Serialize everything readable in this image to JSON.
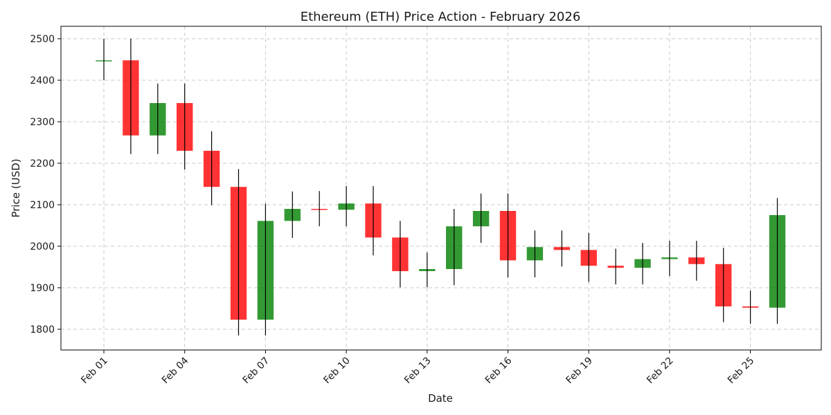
{
  "chart_data": {
    "type": "candlestick",
    "title": "Ethereum (ETH) Price Action - February 2026",
    "xlabel": "Date",
    "ylabel": "Price (USD)",
    "ylim": [
      1750,
      2530
    ],
    "yticks": [
      1800,
      1900,
      2000,
      2100,
      2200,
      2300,
      2400,
      2500
    ],
    "xticks": [
      {
        "index": 0,
        "label": "Feb 01"
      },
      {
        "index": 3,
        "label": "Feb 04"
      },
      {
        "index": 6,
        "label": "Feb 07"
      },
      {
        "index": 9,
        "label": "Feb 10"
      },
      {
        "index": 12,
        "label": "Feb 13"
      },
      {
        "index": 15,
        "label": "Feb 16"
      },
      {
        "index": 18,
        "label": "Feb 19"
      },
      {
        "index": 21,
        "label": "Feb 22"
      },
      {
        "index": 24,
        "label": "Feb 25"
      }
    ],
    "grid": true,
    "colors": {
      "up": "#008000",
      "down": "#ff0000"
    },
    "candles": [
      {
        "date": "Feb 01",
        "open": 2448,
        "high": 2500,
        "low": 2400,
        "close": 2448
      },
      {
        "date": "Feb 02",
        "open": 2448,
        "high": 2500,
        "low": 2222,
        "close": 2267
      },
      {
        "date": "Feb 03",
        "open": 2267,
        "high": 2392,
        "low": 2222,
        "close": 2345
      },
      {
        "date": "Feb 04",
        "open": 2345,
        "high": 2392,
        "low": 2185,
        "close": 2230
      },
      {
        "date": "Feb 05",
        "open": 2230,
        "high": 2277,
        "low": 2099,
        "close": 2143
      },
      {
        "date": "Feb 06",
        "open": 2143,
        "high": 2186,
        "low": 1785,
        "close": 1823
      },
      {
        "date": "Feb 07",
        "open": 1823,
        "high": 2103,
        "low": 1785,
        "close": 2061
      },
      {
        "date": "Feb 08",
        "open": 2061,
        "high": 2132,
        "low": 2020,
        "close": 2090
      },
      {
        "date": "Feb 09",
        "open": 2090,
        "high": 2133,
        "low": 2048,
        "close": 2088
      },
      {
        "date": "Feb 10",
        "open": 2088,
        "high": 2145,
        "low": 2048,
        "close": 2103
      },
      {
        "date": "Feb 11",
        "open": 2103,
        "high": 2145,
        "low": 1978,
        "close": 2021
      },
      {
        "date": "Feb 12",
        "open": 2021,
        "high": 2061,
        "low": 1901,
        "close": 1940
      },
      {
        "date": "Feb 13",
        "open": 1940,
        "high": 1985,
        "low": 1901,
        "close": 1945
      },
      {
        "date": "Feb 14",
        "open": 1945,
        "high": 2090,
        "low": 1906,
        "close": 2048
      },
      {
        "date": "Feb 15",
        "open": 2048,
        "high": 2127,
        "low": 2008,
        "close": 2085
      },
      {
        "date": "Feb 16",
        "open": 2085,
        "high": 2127,
        "low": 1925,
        "close": 1966
      },
      {
        "date": "Feb 17",
        "open": 1966,
        "high": 2038,
        "low": 1925,
        "close": 1998
      },
      {
        "date": "Feb 18",
        "open": 1998,
        "high": 2038,
        "low": 1951,
        "close": 1991
      },
      {
        "date": "Feb 19",
        "open": 1991,
        "high": 2032,
        "low": 1914,
        "close": 1953
      },
      {
        "date": "Feb 20",
        "open": 1953,
        "high": 1994,
        "low": 1908,
        "close": 1948
      },
      {
        "date": "Feb 21",
        "open": 1948,
        "high": 2008,
        "low": 1908,
        "close": 1969
      },
      {
        "date": "Feb 22",
        "open": 1969,
        "high": 2013,
        "low": 1928,
        "close": 1973
      },
      {
        "date": "Feb 23",
        "open": 1973,
        "high": 2013,
        "low": 1917,
        "close": 1957
      },
      {
        "date": "Feb 24",
        "open": 1957,
        "high": 1996,
        "low": 1817,
        "close": 1855
      },
      {
        "date": "Feb 25",
        "open": 1855,
        "high": 1893,
        "low": 1813,
        "close": 1852
      },
      {
        "date": "Feb 26",
        "open": 1852,
        "high": 2116,
        "low": 1813,
        "close": 2075
      }
    ]
  }
}
